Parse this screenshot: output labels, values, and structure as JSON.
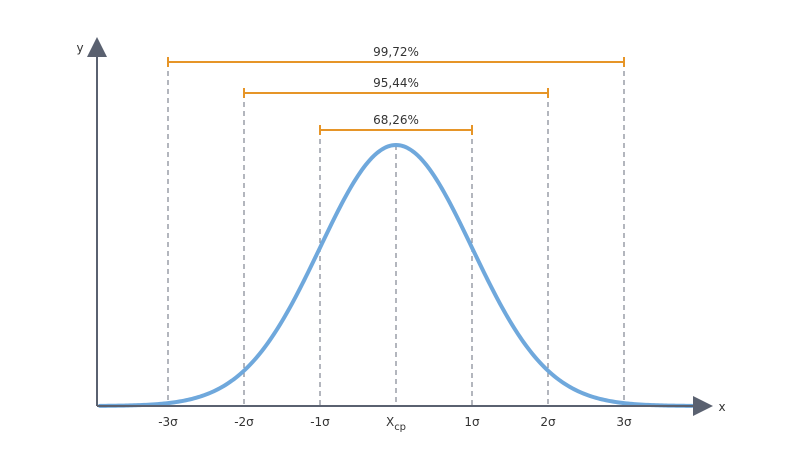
{
  "diagram": {
    "axis_y_label": "y",
    "axis_x_label": "x",
    "center_label": "X",
    "center_subscript": "cp",
    "ticks": [
      {
        "sigma": -3,
        "label": "-3σ"
      },
      {
        "sigma": -2,
        "label": "-2σ"
      },
      {
        "sigma": -1,
        "label": "-1σ"
      },
      {
        "sigma": 1,
        "label": "1σ"
      },
      {
        "sigma": 2,
        "label": "2σ"
      },
      {
        "sigma": 3,
        "label": "3σ"
      }
    ],
    "intervals": [
      {
        "k": 3,
        "label": "99,72%"
      },
      {
        "k": 2,
        "label": "95,44%"
      },
      {
        "k": 1,
        "label": "68,26%"
      }
    ],
    "colors": {
      "curve": "#6fa8dc",
      "bracket": "#e69528",
      "axis": "#5a6170",
      "guide": "#8a8f9a"
    }
  }
}
